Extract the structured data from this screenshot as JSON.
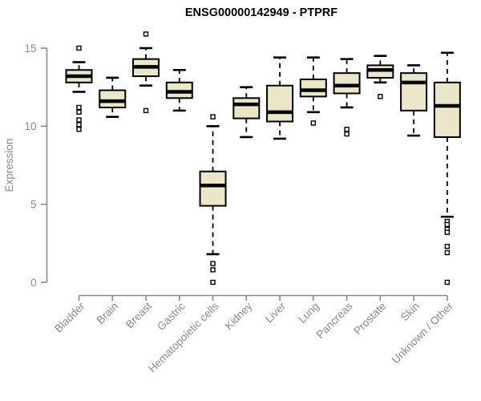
{
  "title": "ENSG00000142949 - PTPRF",
  "chart_data": {
    "type": "boxplot",
    "title": "ENSG00000142949 - PTPRF",
    "xlabel": "",
    "ylabel": "Expression",
    "ylim": [
      0,
      15
    ],
    "yticks": [
      0,
      5,
      10,
      15
    ],
    "grid": false,
    "legend": "none",
    "x_label_rotation": 45,
    "categories": [
      "Bladder",
      "Brain",
      "Breast",
      "Gastric",
      "Hematopoietic cells",
      "Kidney",
      "Liver",
      "Lung",
      "Pancreas",
      "Prostate",
      "Skin",
      "Unknown / Other"
    ],
    "boxes": [
      {
        "category": "Bladder",
        "whisker_low": 12.2,
        "q1": 12.8,
        "median": 13.2,
        "q3": 13.6,
        "whisker_high": 14.1,
        "outliers": [
          15.0,
          11.2,
          10.9,
          10.4,
          10.1,
          9.8
        ]
      },
      {
        "category": "Brain",
        "whisker_low": 10.6,
        "q1": 11.2,
        "median": 11.6,
        "q3": 12.3,
        "whisker_high": 13.1,
        "outliers": []
      },
      {
        "category": "Breast",
        "whisker_low": 12.6,
        "q1": 13.2,
        "median": 13.8,
        "q3": 14.3,
        "whisker_high": 15.0,
        "outliers": [
          15.9,
          11.0
        ]
      },
      {
        "category": "Gastric",
        "whisker_low": 11.0,
        "q1": 11.8,
        "median": 12.2,
        "q3": 12.8,
        "whisker_high": 13.6,
        "outliers": []
      },
      {
        "category": "Hematopoietic cells",
        "whisker_low": 1.8,
        "q1": 4.9,
        "median": 6.2,
        "q3": 7.1,
        "whisker_high": 10.0,
        "outliers": [
          10.6,
          1.2,
          0.8,
          0.0
        ]
      },
      {
        "category": "Kidney",
        "whisker_low": 9.3,
        "q1": 10.5,
        "median": 11.4,
        "q3": 11.8,
        "whisker_high": 12.5,
        "outliers": []
      },
      {
        "category": "Liver",
        "whisker_low": 9.2,
        "q1": 10.3,
        "median": 10.9,
        "q3": 12.6,
        "whisker_high": 14.4,
        "outliers": []
      },
      {
        "category": "Lung",
        "whisker_low": 10.9,
        "q1": 11.9,
        "median": 12.3,
        "q3": 13.0,
        "whisker_high": 14.4,
        "outliers": [
          10.2
        ]
      },
      {
        "category": "Pancreas",
        "whisker_low": 11.2,
        "q1": 12.1,
        "median": 12.6,
        "q3": 13.4,
        "whisker_high": 14.3,
        "outliers": [
          9.8,
          9.5
        ]
      },
      {
        "category": "Prostate",
        "whisker_low": 12.8,
        "q1": 13.1,
        "median": 13.6,
        "q3": 13.9,
        "whisker_high": 14.5,
        "outliers": [
          11.9
        ]
      },
      {
        "category": "Skin",
        "whisker_low": 9.4,
        "q1": 11.0,
        "median": 12.8,
        "q3": 13.4,
        "whisker_high": 13.9,
        "outliers": []
      },
      {
        "category": "Unknown / Other",
        "whisker_low": 4.2,
        "q1": 9.3,
        "median": 11.3,
        "q3": 12.8,
        "whisker_high": 14.7,
        "outliers": [
          3.9,
          3.7,
          3.4,
          3.2,
          2.3,
          1.9,
          0.0
        ]
      }
    ],
    "colors": {
      "box_fill": "#ECE6C9",
      "box_border": "#000000",
      "median": "#000000",
      "axis": "#8A8A8A",
      "tick_label": "#8A8A8A",
      "title": "#000000",
      "background": "#FFFFFF"
    }
  }
}
